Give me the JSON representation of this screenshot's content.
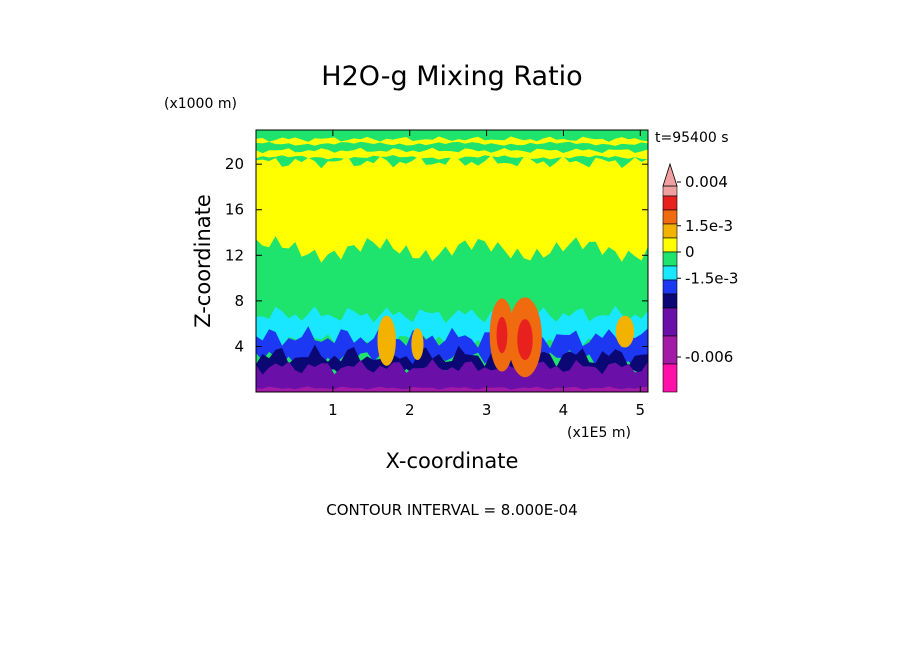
{
  "chart_data": {
    "type": "heatmap",
    "title": "H2O-g Mixing Ratio",
    "xlabel": "X-coordinate",
    "ylabel": "Z-coordinate",
    "x_units": "(x1E5 m)",
    "y_units": "(x1000 m)",
    "time_label": "t=95400 s",
    "footer": "CONTOUR INTERVAL = 8.000E-04",
    "xlim": [
      0,
      5.1
    ],
    "ylim": [
      0,
      23
    ],
    "x_ticks": [
      1,
      2,
      3,
      4,
      5
    ],
    "x_tick_labels": [
      "1",
      "2",
      "3",
      "4",
      "5"
    ],
    "y_ticks": [
      4,
      8,
      12,
      16,
      20
    ],
    "y_tick_labels": [
      "4",
      "8",
      "12",
      "16",
      "20"
    ],
    "colorbar": {
      "labels": [
        {
          "text": "0.004",
          "value": 0.004
        },
        {
          "text": "1.5e-3",
          "value": 0.0015
        },
        {
          "text": "0",
          "value": 0
        },
        {
          "text": "-1.5e-3",
          "value": -0.0015
        },
        {
          "text": "-0.006",
          "value": -0.006
        }
      ],
      "levels": [
        {
          "min": 0.0032,
          "color": "#f0a0a0"
        },
        {
          "min": 0.0024,
          "color": "#e8201e"
        },
        {
          "min": 0.0016,
          "color": "#f06a10"
        },
        {
          "min": 0.0008,
          "color": "#f3b100"
        },
        {
          "min": 0.0,
          "color": "#ffff00"
        },
        {
          "min": -0.0008,
          "color": "#1ee36c"
        },
        {
          "min": -0.0016,
          "color": "#19e6ff"
        },
        {
          "min": -0.0024,
          "color": "#1c38f3"
        },
        {
          "min": -0.0032,
          "color": "#0b0876"
        },
        {
          "min": -0.0048,
          "color": "#6a10a8"
        },
        {
          "min": -0.0064,
          "color": "#a21aa6"
        },
        {
          "min": -0.008,
          "color": "#ff10a8"
        }
      ]
    },
    "regions": [
      {
        "band": "upper layer, z 20-23",
        "value": -0.0004
      },
      {
        "band": "z 12-20",
        "value": 0.0004
      },
      {
        "band": "z 6-9",
        "value": -0.0004
      },
      {
        "band": "z 3-6",
        "value": -0.0018
      },
      {
        "band": "z 1-3",
        "value": -0.0036
      },
      {
        "band": "z 0-1",
        "value": -0.0052
      },
      {
        "band": "convective core x 3.0-3.7, z 2-8",
        "value": 0.0028
      }
    ]
  }
}
